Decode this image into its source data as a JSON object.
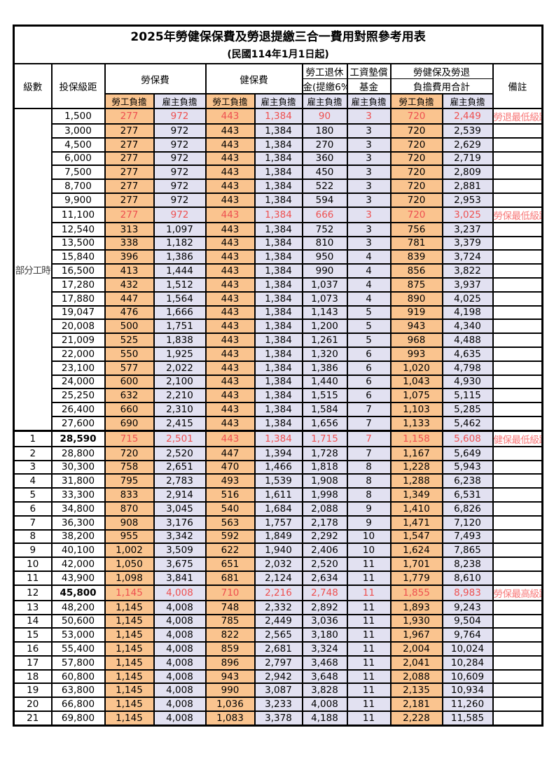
{
  "title": "2025年勞健保保費及勞退提繳三合一費用對照參考用表",
  "subtitle": "(民國114年1月1日起)",
  "header": {
    "level": "級數",
    "bracket": "投保級距",
    "labor_fee": "勞保費",
    "health_fee": "健保費",
    "pension_l1": "勞工退休",
    "pension_l2": "金(提繳6%)",
    "fund_l1": "工資墊償",
    "fund_l2": "基金",
    "total_l1": "勞健保及勞退",
    "total_l2": "負擔費用合計",
    "remark": "備註",
    "employee": "勞工負擔",
    "employer": "雇主負擔"
  },
  "colors": {
    "employee_bg": "#FAC48F",
    "employer_bg": "#E2E1F1",
    "highlight_text": "#EE5050",
    "remark_text": "#F87878",
    "border": "#000000"
  },
  "part_time_label": "部分工時",
  "part_time_rowspan": 23,
  "column_names": [
    "li-employee",
    "li-employer",
    "hi-employee",
    "hi-employer",
    "pension-employer",
    "wage-fund-employer",
    "total-employee",
    "total-employer"
  ],
  "rows": [
    {
      "level": null,
      "bracket": "1,500",
      "values": [
        "277",
        "972",
        "443",
        "1,384",
        "90",
        "3",
        "720",
        "2,449"
      ],
      "remark": "勞退最低級距",
      "red": true,
      "bold": false,
      "groupTop": false
    },
    {
      "level": null,
      "bracket": "3,000",
      "values": [
        "277",
        "972",
        "443",
        "1,384",
        "180",
        "3",
        "720",
        "2,539"
      ],
      "remark": "",
      "red": false,
      "bold": false,
      "groupTop": false
    },
    {
      "level": null,
      "bracket": "4,500",
      "values": [
        "277",
        "972",
        "443",
        "1,384",
        "270",
        "3",
        "720",
        "2,629"
      ],
      "remark": "",
      "red": false,
      "bold": false,
      "groupTop": false
    },
    {
      "level": null,
      "bracket": "6,000",
      "values": [
        "277",
        "972",
        "443",
        "1,384",
        "360",
        "3",
        "720",
        "2,719"
      ],
      "remark": "",
      "red": false,
      "bold": false,
      "groupTop": false
    },
    {
      "level": null,
      "bracket": "7,500",
      "values": [
        "277",
        "972",
        "443",
        "1,384",
        "450",
        "3",
        "720",
        "2,809"
      ],
      "remark": "",
      "red": false,
      "bold": false,
      "groupTop": false
    },
    {
      "level": null,
      "bracket": "8,700",
      "values": [
        "277",
        "972",
        "443",
        "1,384",
        "522",
        "3",
        "720",
        "2,881"
      ],
      "remark": "",
      "red": false,
      "bold": false,
      "groupTop": false
    },
    {
      "level": null,
      "bracket": "9,900",
      "values": [
        "277",
        "972",
        "443",
        "1,384",
        "594",
        "3",
        "720",
        "2,953"
      ],
      "remark": "",
      "red": false,
      "bold": false,
      "groupTop": false
    },
    {
      "level": null,
      "bracket": "11,100",
      "values": [
        "277",
        "972",
        "443",
        "1,384",
        "666",
        "3",
        "720",
        "3,025"
      ],
      "remark": "勞保最低級距",
      "red": true,
      "bold": false,
      "groupTop": false
    },
    {
      "level": null,
      "bracket": "12,540",
      "values": [
        "313",
        "1,097",
        "443",
        "1,384",
        "752",
        "3",
        "756",
        "3,237"
      ],
      "remark": "",
      "red": false,
      "bold": false,
      "groupTop": false
    },
    {
      "level": null,
      "bracket": "13,500",
      "values": [
        "338",
        "1,182",
        "443",
        "1,384",
        "810",
        "3",
        "781",
        "3,379"
      ],
      "remark": "",
      "red": false,
      "bold": false,
      "groupTop": false
    },
    {
      "level": null,
      "bracket": "15,840",
      "values": [
        "396",
        "1,386",
        "443",
        "1,384",
        "950",
        "4",
        "839",
        "3,724"
      ],
      "remark": "",
      "red": false,
      "bold": false,
      "groupTop": false
    },
    {
      "level": null,
      "bracket": "16,500",
      "values": [
        "413",
        "1,444",
        "443",
        "1,384",
        "990",
        "4",
        "856",
        "3,822"
      ],
      "remark": "",
      "red": false,
      "bold": false,
      "groupTop": false
    },
    {
      "level": null,
      "bracket": "17,280",
      "values": [
        "432",
        "1,512",
        "443",
        "1,384",
        "1,037",
        "4",
        "875",
        "3,937"
      ],
      "remark": "",
      "red": false,
      "bold": false,
      "groupTop": false
    },
    {
      "level": null,
      "bracket": "17,880",
      "values": [
        "447",
        "1,564",
        "443",
        "1,384",
        "1,073",
        "4",
        "890",
        "4,025"
      ],
      "remark": "",
      "red": false,
      "bold": false,
      "groupTop": false
    },
    {
      "level": null,
      "bracket": "19,047",
      "values": [
        "476",
        "1,666",
        "443",
        "1,384",
        "1,143",
        "5",
        "919",
        "4,198"
      ],
      "remark": "",
      "red": false,
      "bold": false,
      "groupTop": false
    },
    {
      "level": null,
      "bracket": "20,008",
      "values": [
        "500",
        "1,751",
        "443",
        "1,384",
        "1,200",
        "5",
        "943",
        "4,340"
      ],
      "remark": "",
      "red": false,
      "bold": false,
      "groupTop": false
    },
    {
      "level": null,
      "bracket": "21,009",
      "values": [
        "525",
        "1,838",
        "443",
        "1,384",
        "1,261",
        "5",
        "968",
        "4,488"
      ],
      "remark": "",
      "red": false,
      "bold": false,
      "groupTop": false
    },
    {
      "level": null,
      "bracket": "22,000",
      "values": [
        "550",
        "1,925",
        "443",
        "1,384",
        "1,320",
        "6",
        "993",
        "4,635"
      ],
      "remark": "",
      "red": false,
      "bold": false,
      "groupTop": false
    },
    {
      "level": null,
      "bracket": "23,100",
      "values": [
        "577",
        "2,022",
        "443",
        "1,384",
        "1,386",
        "6",
        "1,020",
        "4,798"
      ],
      "remark": "",
      "red": false,
      "bold": false,
      "groupTop": false
    },
    {
      "level": null,
      "bracket": "24,000",
      "values": [
        "600",
        "2,100",
        "443",
        "1,384",
        "1,440",
        "6",
        "1,043",
        "4,930"
      ],
      "remark": "",
      "red": false,
      "bold": false,
      "groupTop": false
    },
    {
      "level": null,
      "bracket": "25,250",
      "values": [
        "632",
        "2,210",
        "443",
        "1,384",
        "1,515",
        "6",
        "1,075",
        "5,115"
      ],
      "remark": "",
      "red": false,
      "bold": false,
      "groupTop": false
    },
    {
      "level": null,
      "bracket": "26,400",
      "values": [
        "660",
        "2,310",
        "443",
        "1,384",
        "1,584",
        "7",
        "1,103",
        "5,285"
      ],
      "remark": "",
      "red": false,
      "bold": false,
      "groupTop": false
    },
    {
      "level": null,
      "bracket": "27,600",
      "values": [
        "690",
        "2,415",
        "443",
        "1,384",
        "1,656",
        "7",
        "1,133",
        "5,462"
      ],
      "remark": "",
      "red": false,
      "bold": false,
      "groupTop": false
    },
    {
      "level": "1",
      "bracket": "28,590",
      "values": [
        "715",
        "2,501",
        "443",
        "1,384",
        "1,715",
        "7",
        "1,158",
        "5,608"
      ],
      "remark": "健保最低級距",
      "red": true,
      "bold": true,
      "groupTop": true
    },
    {
      "level": "2",
      "bracket": "28,800",
      "values": [
        "720",
        "2,520",
        "447",
        "1,394",
        "1,728",
        "7",
        "1,167",
        "5,649"
      ],
      "remark": "",
      "red": false,
      "bold": false,
      "groupTop": false
    },
    {
      "level": "3",
      "bracket": "30,300",
      "values": [
        "758",
        "2,651",
        "470",
        "1,466",
        "1,818",
        "8",
        "1,228",
        "5,943"
      ],
      "remark": "",
      "red": false,
      "bold": false,
      "groupTop": false
    },
    {
      "level": "4",
      "bracket": "31,800",
      "values": [
        "795",
        "2,783",
        "493",
        "1,539",
        "1,908",
        "8",
        "1,288",
        "6,238"
      ],
      "remark": "",
      "red": false,
      "bold": false,
      "groupTop": false
    },
    {
      "level": "5",
      "bracket": "33,300",
      "values": [
        "833",
        "2,914",
        "516",
        "1,611",
        "1,998",
        "8",
        "1,349",
        "6,531"
      ],
      "remark": "",
      "red": false,
      "bold": false,
      "groupTop": false
    },
    {
      "level": "6",
      "bracket": "34,800",
      "values": [
        "870",
        "3,045",
        "540",
        "1,684",
        "2,088",
        "9",
        "1,410",
        "6,826"
      ],
      "remark": "",
      "red": false,
      "bold": false,
      "groupTop": false
    },
    {
      "level": "7",
      "bracket": "36,300",
      "values": [
        "908",
        "3,176",
        "563",
        "1,757",
        "2,178",
        "9",
        "1,471",
        "7,120"
      ],
      "remark": "",
      "red": false,
      "bold": false,
      "groupTop": false
    },
    {
      "level": "8",
      "bracket": "38,200",
      "values": [
        "955",
        "3,342",
        "592",
        "1,849",
        "2,292",
        "10",
        "1,547",
        "7,493"
      ],
      "remark": "",
      "red": false,
      "bold": false,
      "groupTop": false
    },
    {
      "level": "9",
      "bracket": "40,100",
      "values": [
        "1,002",
        "3,509",
        "622",
        "1,940",
        "2,406",
        "10",
        "1,624",
        "7,865"
      ],
      "remark": "",
      "red": false,
      "bold": false,
      "groupTop": false
    },
    {
      "level": "10",
      "bracket": "42,000",
      "values": [
        "1,050",
        "3,675",
        "651",
        "2,032",
        "2,520",
        "11",
        "1,701",
        "8,238"
      ],
      "remark": "",
      "red": false,
      "bold": false,
      "groupTop": false
    },
    {
      "level": "11",
      "bracket": "43,900",
      "values": [
        "1,098",
        "3,841",
        "681",
        "2,124",
        "2,634",
        "11",
        "1,779",
        "8,610"
      ],
      "remark": "",
      "red": false,
      "bold": false,
      "groupTop": false
    },
    {
      "level": "12",
      "bracket": "45,800",
      "values": [
        "1,145",
        "4,008",
        "710",
        "2,216",
        "2,748",
        "11",
        "1,855",
        "8,983"
      ],
      "remark": "勞保最高級距",
      "red": true,
      "bold": true,
      "groupTop": false
    },
    {
      "level": "13",
      "bracket": "48,200",
      "values": [
        "1,145",
        "4,008",
        "748",
        "2,332",
        "2,892",
        "11",
        "1,893",
        "9,243"
      ],
      "remark": "",
      "red": false,
      "bold": false,
      "groupTop": false
    },
    {
      "level": "14",
      "bracket": "50,600",
      "values": [
        "1,145",
        "4,008",
        "785",
        "2,449",
        "3,036",
        "11",
        "1,930",
        "9,504"
      ],
      "remark": "",
      "red": false,
      "bold": false,
      "groupTop": false
    },
    {
      "level": "15",
      "bracket": "53,000",
      "values": [
        "1,145",
        "4,008",
        "822",
        "2,565",
        "3,180",
        "11",
        "1,967",
        "9,764"
      ],
      "remark": "",
      "red": false,
      "bold": false,
      "groupTop": false
    },
    {
      "level": "16",
      "bracket": "55,400",
      "values": [
        "1,145",
        "4,008",
        "859",
        "2,681",
        "3,324",
        "11",
        "2,004",
        "10,024"
      ],
      "remark": "",
      "red": false,
      "bold": false,
      "groupTop": false
    },
    {
      "level": "17",
      "bracket": "57,800",
      "values": [
        "1,145",
        "4,008",
        "896",
        "2,797",
        "3,468",
        "11",
        "2,041",
        "10,284"
      ],
      "remark": "",
      "red": false,
      "bold": false,
      "groupTop": false
    },
    {
      "level": "18",
      "bracket": "60,800",
      "values": [
        "1,145",
        "4,008",
        "943",
        "2,942",
        "3,648",
        "11",
        "2,088",
        "10,609"
      ],
      "remark": "",
      "red": false,
      "bold": false,
      "groupTop": false
    },
    {
      "level": "19",
      "bracket": "63,800",
      "values": [
        "1,145",
        "4,008",
        "990",
        "3,087",
        "3,828",
        "11",
        "2,135",
        "10,934"
      ],
      "remark": "",
      "red": false,
      "bold": false,
      "groupTop": false
    },
    {
      "level": "20",
      "bracket": "66,800",
      "values": [
        "1,145",
        "4,008",
        "1,036",
        "3,233",
        "4,008",
        "11",
        "2,181",
        "11,260"
      ],
      "remark": "",
      "red": false,
      "bold": false,
      "groupTop": false
    },
    {
      "level": "21",
      "bracket": "69,800",
      "values": [
        "1,145",
        "4,008",
        "1,083",
        "3,378",
        "4,188",
        "11",
        "2,228",
        "11,585"
      ],
      "remark": "",
      "red": false,
      "bold": false,
      "groupTop": false
    }
  ]
}
